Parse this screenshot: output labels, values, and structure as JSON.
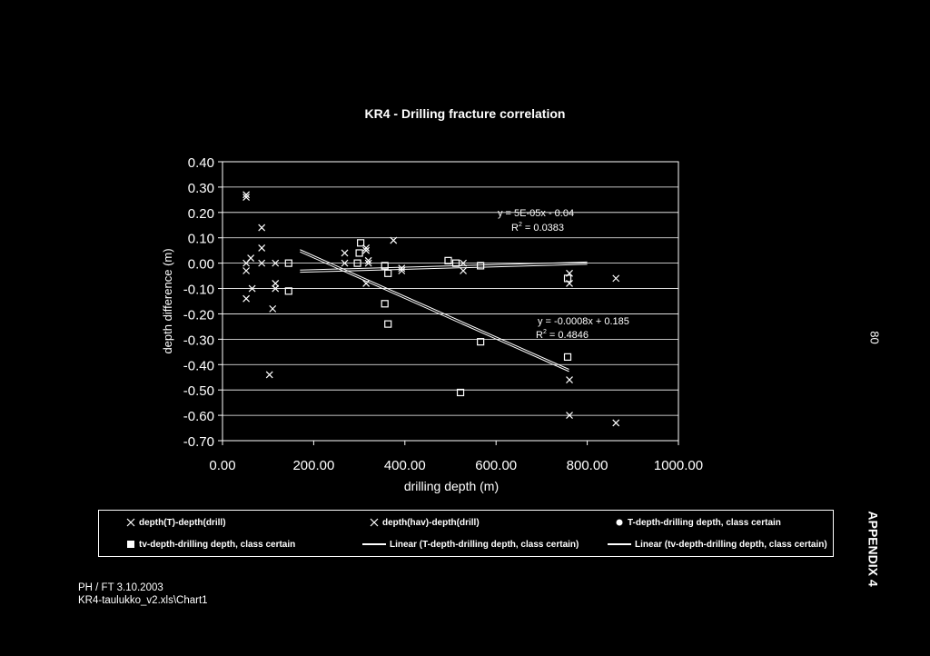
{
  "chart_data": {
    "type": "scatter",
    "title": "KR4 - Drilling fracture correlation",
    "xlabel": "drilling depth (m)",
    "ylabel": "depth difference (m)",
    "xlim": [
      0,
      1000
    ],
    "ylim": [
      -0.7,
      0.4
    ],
    "xticks": [
      "0.00",
      "200.00",
      "400.00",
      "600.00",
      "800.00",
      "1000.00"
    ],
    "yticks": [
      "0.40",
      "0.30",
      "0.20",
      "0.10",
      "0.00",
      "-0.10",
      "-0.20",
      "-0.30",
      "-0.40",
      "-0.50",
      "-0.60",
      "-0.70"
    ],
    "grid": "horizontal",
    "legend_position": "bottom",
    "series": [
      {
        "name": "depth(T)-depth(drill)",
        "marker": "x",
        "points": [
          [
            52,
            0.27
          ],
          [
            52,
            0.26
          ],
          [
            62,
            0.02
          ],
          [
            52,
            0.0
          ],
          [
            52,
            -0.03
          ],
          [
            52,
            -0.14
          ],
          [
            65,
            -0.1
          ],
          [
            86,
            0.14
          ],
          [
            86,
            0.06
          ],
          [
            86,
            0.0
          ],
          [
            116,
            0.0
          ],
          [
            116,
            -0.08
          ],
          [
            116,
            -0.1
          ],
          [
            103,
            -0.44
          ],
          [
            268,
            0.04
          ],
          [
            268,
            0.0
          ],
          [
            315,
            0.05
          ],
          [
            315,
            0.06
          ],
          [
            315,
            -0.08
          ],
          [
            393,
            -0.02
          ],
          [
            393,
            -0.03
          ],
          [
            528,
            -0.03
          ],
          [
            528,
            0.0
          ],
          [
            761,
            -0.04
          ],
          [
            761,
            -0.08
          ],
          [
            761,
            -0.46
          ],
          [
            761,
            -0.6
          ],
          [
            863,
            -0.06
          ],
          [
            863,
            -0.63
          ]
        ]
      },
      {
        "name": "depth(hav)-depth(drill)",
        "marker": "x",
        "points": [
          [
            110,
            -0.18
          ],
          [
            375,
            0.09
          ],
          [
            320,
            0.0
          ],
          [
            320,
            0.01
          ]
        ]
      },
      {
        "name": "T-depth-drilling depth, class certain",
        "marker": "circle",
        "points": []
      },
      {
        "name": "tv-depth-drilling depth, class certain",
        "marker": "square",
        "points": [
          [
            145,
            0.0
          ],
          [
            145,
            -0.11
          ],
          [
            303,
            0.08
          ],
          [
            300,
            0.04
          ],
          [
            296,
            0.0
          ],
          [
            356,
            -0.01
          ],
          [
            363,
            -0.04
          ],
          [
            356,
            -0.16
          ],
          [
            363,
            -0.24
          ],
          [
            495,
            0.01
          ],
          [
            512,
            0.0
          ],
          [
            522,
            -0.51
          ],
          [
            566,
            -0.01
          ],
          [
            566,
            -0.31
          ],
          [
            757,
            -0.06
          ],
          [
            757,
            -0.37
          ]
        ]
      }
    ],
    "trendlines": [
      {
        "name": "Linear (T-depth-drilling depth, class certain)",
        "equation": "y = -0.0008x + 0.185",
        "r2_label": "R",
        "r2_value": "= 0.4846",
        "x_range": [
          170,
          760
        ]
      },
      {
        "name": "Linear (tv-depth-drilling depth, class certain)",
        "equation": "y = 5E-05x - 0.04",
        "r2_label": "R",
        "r2_value": "= 0.0383",
        "x_range": [
          170,
          800
        ]
      }
    ]
  },
  "legend": {
    "items": [
      {
        "label": "depth(T)-depth(drill)",
        "marker": "x"
      },
      {
        "label": "depth(hav)-depth(drill)",
        "marker": "x"
      },
      {
        "label": "T-depth-drilling depth, class certain",
        "marker": "circle"
      },
      {
        "label": "tv-depth-drilling depth, class certain",
        "marker": "square"
      },
      {
        "label": "Linear (T-depth-drilling depth, class certain)",
        "marker": "line"
      },
      {
        "label": "Linear (tv-depth-drilling depth, class certain)",
        "marker": "line"
      }
    ]
  },
  "footer": {
    "line1": "PH / FT 3.10.2003",
    "line2": "KR4-taulukko_v2.xls\\Chart1"
  },
  "side": {
    "page_number": "80",
    "appendix": "APPENDIX 4"
  },
  "colors": {
    "background": "#000000",
    "foreground": "#ffffff"
  }
}
